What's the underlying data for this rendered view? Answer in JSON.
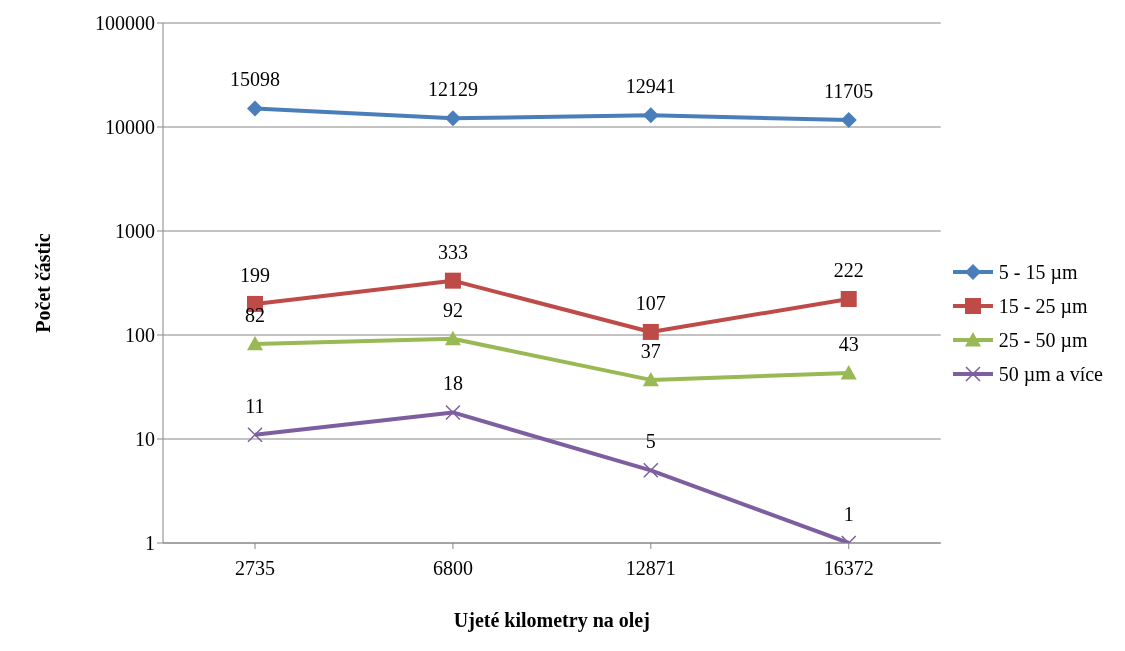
{
  "chart_data": {
    "type": "line",
    "xlabel": "Ujeté kilometry na olej",
    "ylabel": "Počet částic",
    "categories": [
      "2735",
      "6800",
      "12871",
      "16372"
    ],
    "series": [
      {
        "name": "5 - 15 µm",
        "color": "#4a7ebb",
        "marker": "diamond",
        "values": [
          15098,
          12129,
          12941,
          11705
        ]
      },
      {
        "name": "15 - 25 µm",
        "color": "#be4b48",
        "marker": "square",
        "values": [
          199,
          333,
          107,
          222
        ]
      },
      {
        "name": "25 - 50 µm",
        "color": "#98b954",
        "marker": "triangle",
        "values": [
          82,
          92,
          37,
          43
        ]
      },
      {
        "name": "50 µm a více",
        "color": "#7d5fa0",
        "marker": "cross",
        "values": [
          11,
          18,
          5,
          1
        ]
      }
    ],
    "log": "y",
    "ylim": [
      1,
      100000
    ],
    "yticks": [
      1,
      10,
      100,
      1000,
      10000,
      100000
    ],
    "grid": "y",
    "legend": "right",
    "data_labels": true,
    "line_style": "solid"
  }
}
